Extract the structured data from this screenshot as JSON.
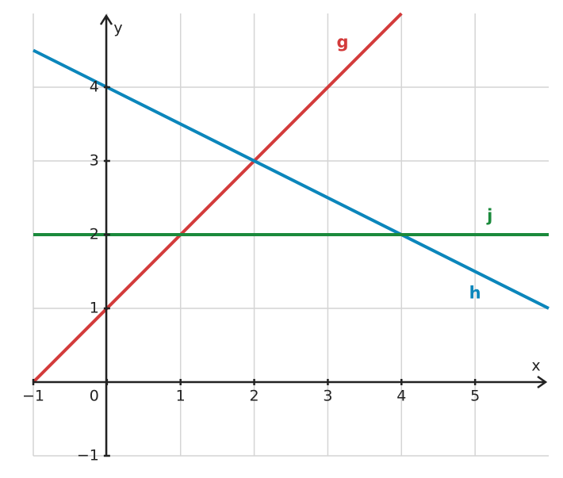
{
  "chart_data": {
    "type": "line",
    "x_label": "x",
    "y_label": "y",
    "xlim": [
      -1,
      6
    ],
    "ylim": [
      -1,
      5
    ],
    "xticks": [
      {
        "value": -1,
        "label": "−1"
      },
      0,
      1,
      2,
      3,
      4,
      5
    ],
    "yticks": [
      {
        "value": -1,
        "label": "−1"
      },
      1,
      2,
      3,
      4
    ],
    "grid": true,
    "series": [
      {
        "name": "g",
        "color": "#d33b3b",
        "x": [
          -1,
          4
        ],
        "values": [
          0,
          5
        ]
      },
      {
        "name": "h",
        "color": "#0b86bb",
        "x": [
          -1,
          6
        ],
        "values": [
          4.5,
          1
        ]
      },
      {
        "name": "j",
        "color": "#1b8a3c",
        "x": [
          -1,
          6
        ],
        "values": [
          2,
          2
        ]
      }
    ]
  }
}
